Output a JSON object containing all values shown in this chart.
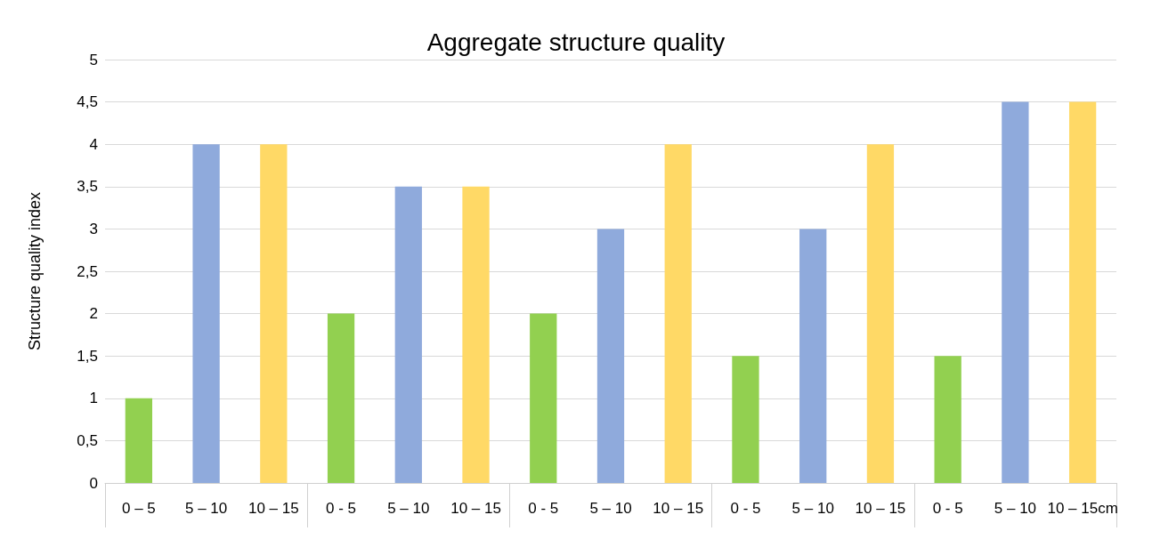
{
  "chart_data": {
    "type": "bar",
    "title": "Aggregate structure quality",
    "ylabel": "Structure quality index",
    "categories": [
      "0 – 5",
      "5 – 10",
      "10 – 15",
      "0 - 5",
      "5 – 10",
      "10 – 15",
      "0 - 5",
      "5 – 10",
      "10 – 15",
      "0 - 5",
      "5 – 10",
      "10 – 15",
      "0 - 5",
      "5 – 10",
      "10 – 15cm"
    ],
    "values": [
      1,
      4,
      4,
      2,
      3.5,
      3.5,
      2,
      3,
      4,
      1.5,
      3,
      4,
      1.5,
      4.5,
      4.5
    ],
    "colors": [
      "#92d050",
      "#8faadc",
      "#ffd966",
      "#92d050",
      "#8faadc",
      "#ffd966",
      "#92d050",
      "#8faadc",
      "#ffd966",
      "#92d050",
      "#8faadc",
      "#ffd966",
      "#92d050",
      "#8faadc",
      "#ffd966"
    ],
    "ylim": [
      0,
      5
    ],
    "yticks": [
      0,
      {
        "value": 0.5,
        "label": "0,5"
      },
      1,
      {
        "value": 1.5,
        "label": "1,5"
      },
      2,
      {
        "value": 2.5,
        "label": "2,5"
      },
      3,
      {
        "value": 3.5,
        "label": "3,5"
      },
      4,
      {
        "value": 4.5,
        "label": "4,5"
      },
      5
    ],
    "grid": "y"
  }
}
